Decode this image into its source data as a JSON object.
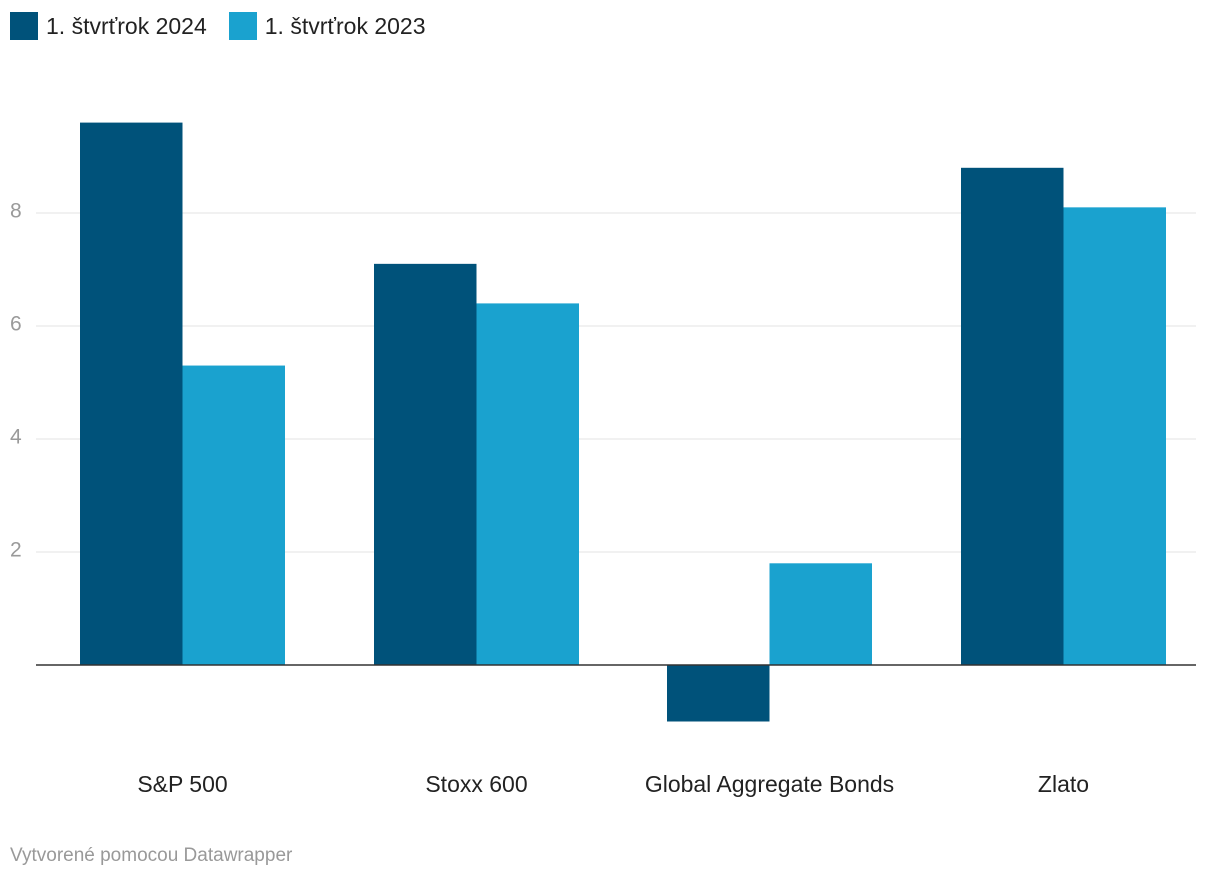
{
  "chart_data": {
    "type": "bar",
    "categories": [
      "S&P 500",
      "Stoxx 600",
      "Global Aggregate Bonds",
      "Zlato"
    ],
    "series": [
      {
        "name": "1. štvrťrok 2024",
        "color": "#00527a",
        "values": [
          9.6,
          7.1,
          -1.0,
          8.8
        ]
      },
      {
        "name": "1. štvrťrok 2023",
        "color": "#1aa2cf",
        "values": [
          5.3,
          6.4,
          1.8,
          8.1
        ]
      }
    ],
    "yticks": [
      2,
      4,
      6,
      8
    ],
    "ylim": [
      -1.5,
      10.5
    ],
    "grid": true,
    "legend": "top-left",
    "title": "",
    "xlabel": "",
    "ylabel": ""
  },
  "footer": {
    "credit": "Vytvorené pomocou Datawrapper"
  }
}
